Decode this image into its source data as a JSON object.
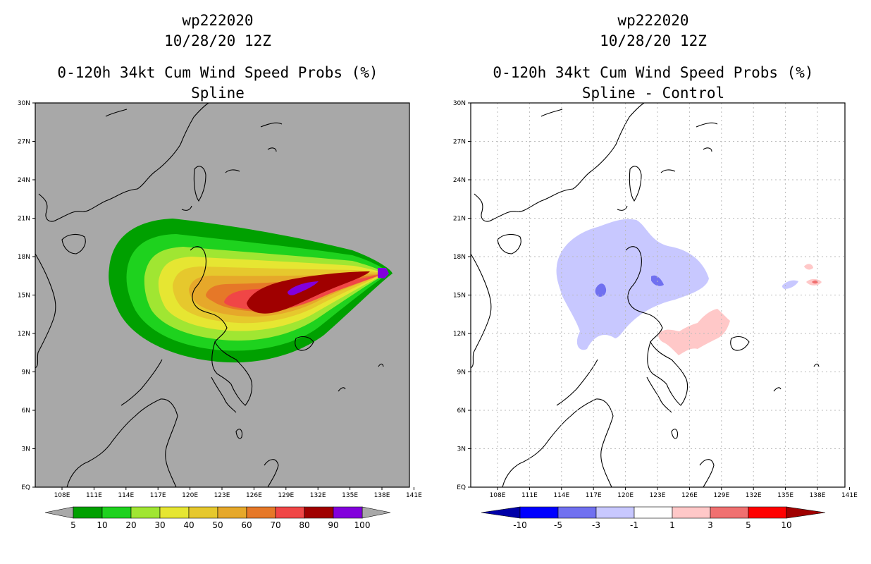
{
  "colors": {
    "land_background": "#a8a8a8",
    "coast": "#000000",
    "spline_bins": [
      "#00a000",
      "#1ed21e",
      "#a0e632",
      "#e6e632",
      "#e6c82d",
      "#e6a82a",
      "#e67828",
      "#f04646",
      "#a00000",
      "#8200dc"
    ],
    "diff_bins": [
      "#0000a8",
      "#0000ff",
      "#7070f0",
      "#c8c8ff",
      "#ffffff",
      "#ffc8c8",
      "#f07070",
      "#ff0000",
      "#a00000"
    ]
  },
  "left_panel": {
    "title_line1": "wp222020",
    "title_line2": "10/28/20 12Z",
    "title_line3": "0-120h 34kt Cum Wind Speed Probs (%)",
    "title_line4": "Spline",
    "colorbar_labels": [
      "5",
      "10",
      "20",
      "30",
      "40",
      "50",
      "60",
      "70",
      "80",
      "90",
      "100"
    ]
  },
  "right_panel": {
    "title_line1": "wp222020",
    "title_line2": "10/28/20 12Z",
    "title_line3": "0-120h 34kt Cum Wind Speed Probs (%)",
    "title_line4": "Spline - Control",
    "colorbar_labels": [
      "-10",
      "-5",
      "-3",
      "-1",
      "1",
      "3",
      "5",
      "10"
    ]
  },
  "axes": {
    "lon_labels": [
      "108E",
      "111E",
      "114E",
      "117E",
      "120E",
      "123E",
      "126E",
      "129E",
      "132E",
      "135E",
      "138E",
      "141E"
    ],
    "lat_labels": [
      "30N",
      "27N",
      "24N",
      "21N",
      "18N",
      "15N",
      "12N",
      "9N",
      "6N",
      "3N",
      "EQ"
    ]
  },
  "map_data": {
    "lon_range": [
      106,
      141
    ],
    "lat_range": [
      0,
      30
    ],
    "probability_contours": [
      5,
      10,
      20,
      30,
      40,
      50,
      60,
      70,
      80,
      90,
      100
    ],
    "difference_contours": [
      -10,
      -5,
      -3,
      -1,
      1,
      3,
      5,
      10
    ]
  }
}
